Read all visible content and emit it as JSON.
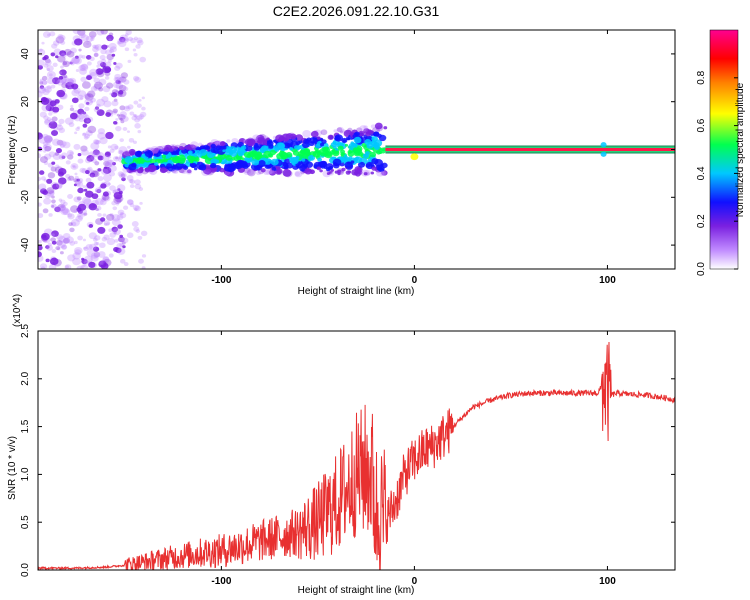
{
  "page_title": "C2E2.2026.091.22.10.G31",
  "colors": {
    "background": "#ffffff",
    "snr_line": "#e83030",
    "track_core": "#ff1a4a",
    "track_edge": "#2bd07a"
  },
  "chart_data": [
    {
      "type": "heatmap",
      "title": "C2E2.2026.091.22.10.G31",
      "xlabel": "Height of straight line (km)",
      "ylabel": "Frequency (Hz)",
      "xlim": [
        -195,
        135
      ],
      "ylim": [
        -50,
        50
      ],
      "xticks": [
        -100,
        0,
        100
      ],
      "xtick_labels": [
        "-100",
        "0",
        "100"
      ],
      "yticks": [
        -40,
        -20,
        0,
        20,
        40
      ],
      "ytick_labels": [
        "-40",
        "-20",
        "0",
        "20",
        "40"
      ],
      "colorbar": {
        "label": "Normalized spectral amplitude",
        "range": [
          0.0,
          1.0
        ],
        "ticks": [
          0.0,
          0.2,
          0.4,
          0.6,
          0.8
        ],
        "tick_labels": [
          "0.0",
          "0.2",
          "0.4",
          "0.6",
          "0.8"
        ],
        "colors": [
          "#ffffff",
          "#8a2be2",
          "#0000ff",
          "#00d0ff",
          "#00ff60",
          "#ffff00",
          "#ff8000",
          "#ff0000",
          "#ff00a0"
        ]
      },
      "regions": [
        {
          "name": "scattered noise",
          "x": [
            -195,
            -150
          ],
          "y": [
            -50,
            50
          ],
          "amplitude": 0.15
        },
        {
          "name": "diffuse track",
          "x": [
            -150,
            -20
          ],
          "y_center": [
            -5,
            0
          ],
          "amplitude": 0.4
        },
        {
          "name": "coherent track",
          "x": [
            -15,
            135
          ],
          "frequency": 0,
          "amplitude": 0.95
        }
      ]
    },
    {
      "type": "line",
      "xlabel": "Height of straight line (km)",
      "ylabel": "SNR (10 * v/v)",
      "yscale_label": "(x10^4)",
      "xlim": [
        -195,
        135
      ],
      "ylim": [
        0,
        2.5
      ],
      "xticks": [
        -100,
        0,
        100
      ],
      "xtick_labels": [
        "-100",
        "0",
        "100"
      ],
      "yticks": [
        0,
        0.5,
        1.0,
        1.5,
        2.0,
        2.5
      ],
      "ytick_labels": [
        "0.0",
        "0.5",
        "1.0",
        "1.5",
        "2.0",
        "2.5"
      ],
      "series": [
        {
          "name": "SNR",
          "x": [
            -195,
            -175,
            -160,
            -150,
            -140,
            -130,
            -120,
            -110,
            -100,
            -90,
            -80,
            -70,
            -60,
            -50,
            -45,
            -40,
            -35,
            -30,
            -25,
            -22,
            -20,
            -15,
            -10,
            -5,
            0,
            5,
            10,
            15,
            20,
            25,
            30,
            40,
            50,
            60,
            70,
            80,
            90,
            95,
            98,
            100,
            102,
            105,
            110,
            120,
            130,
            135
          ],
          "values": [
            0.02,
            0.02,
            0.03,
            0.05,
            0.08,
            0.12,
            0.15,
            0.18,
            0.2,
            0.25,
            0.3,
            0.35,
            0.4,
            0.5,
            0.6,
            0.7,
            0.85,
            1.0,
            1.05,
            1.0,
            0.6,
            0.5,
            0.7,
            1.0,
            1.15,
            1.25,
            1.3,
            1.4,
            1.5,
            1.6,
            1.7,
            1.78,
            1.83,
            1.85,
            1.85,
            1.85,
            1.85,
            1.85,
            1.95,
            1.85,
            1.83,
            1.85,
            1.84,
            1.83,
            1.8,
            1.78
          ]
        }
      ]
    }
  ]
}
